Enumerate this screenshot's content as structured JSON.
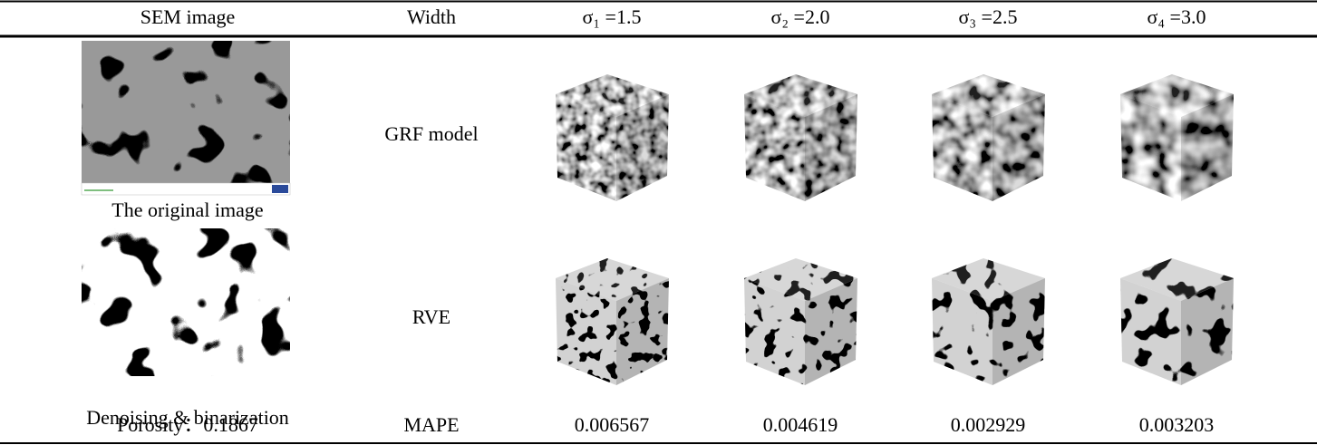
{
  "table": {
    "header": [
      "SEM image",
      "Width",
      "σ₁ =1.5",
      "σ₂ =2.0",
      "σ₃ =2.5",
      "σ₄ =3.0"
    ],
    "rows": [
      [
        "The original image",
        "GRF model"
      ],
      [
        "Denoising & binarization",
        "RVE"
      ],
      [
        "Porosity：0.1867",
        "MAPE",
        "0.006567",
        "0.004619",
        "0.002929",
        "0.003203"
      ]
    ]
  }
}
